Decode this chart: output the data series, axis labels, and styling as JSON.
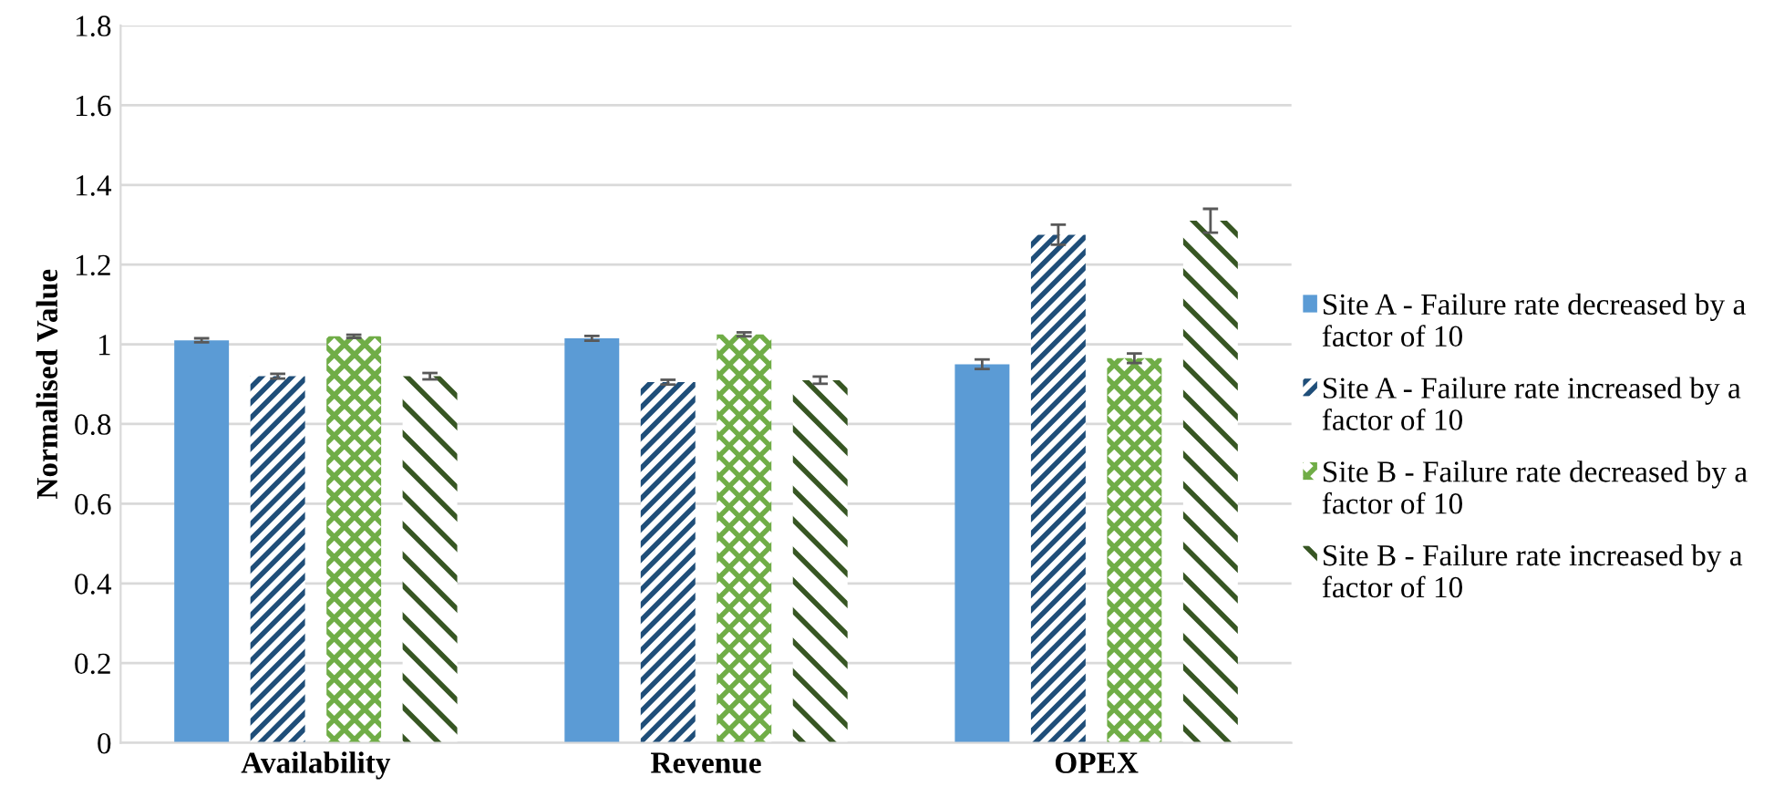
{
  "chart_data": {
    "type": "bar",
    "ylabel": "Normalised Value",
    "categories": [
      "Availability",
      "Revenue",
      "OPEX"
    ],
    "series": [
      {
        "name": "Site A - Failure rate decreased by a factor of 10",
        "color": "#5b9bd5",
        "values": [
          1.01,
          1.015,
          0.95
        ],
        "errors": [
          0.005,
          0.006,
          0.012
        ]
      },
      {
        "name": "Site A - Failure rate increased by a factor of 10",
        "color": "#1f4e79",
        "values": [
          0.92,
          0.905,
          1.275
        ],
        "errors": [
          0.006,
          0.006,
          0.025
        ]
      },
      {
        "name": "Site B - Failure rate decreased by a factor of 10",
        "color": "#70ad47",
        "values": [
          1.02,
          1.025,
          0.965
        ],
        "errors": [
          0.004,
          0.005,
          0.012
        ]
      },
      {
        "name": "Site B - Failure rate increased by a factor of 10",
        "color": "#375623",
        "values": [
          0.92,
          0.91,
          1.31
        ],
        "errors": [
          0.008,
          0.009,
          0.03
        ]
      }
    ],
    "ylim": [
      0,
      1.8
    ],
    "yticks": [
      0,
      0.2,
      0.4,
      0.6,
      0.8,
      1,
      1.2,
      1.4,
      1.6,
      1.8
    ],
    "grid": "y",
    "legend": "right"
  }
}
